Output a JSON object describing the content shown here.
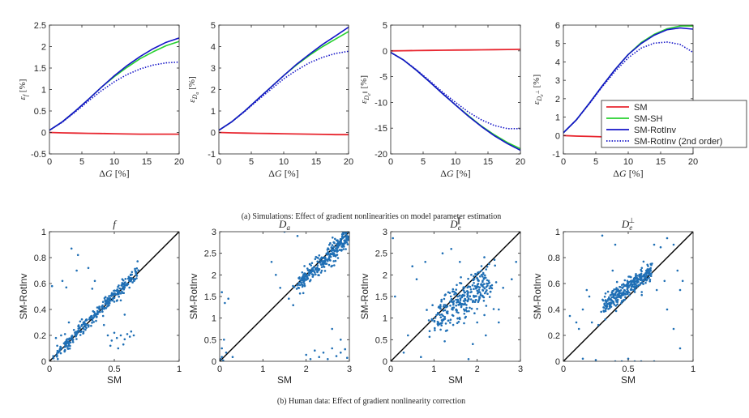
{
  "captions": {
    "a": "(a) Simulations: Effect of gradient nonlinearities on model parameter estimation",
    "b": "(b) Human data: Effect of gradient nonlinearity correction"
  },
  "colors": {
    "SM": "#e8262f",
    "SM-SH": "#27d12f",
    "SM-RotInv": "#1414c8",
    "SM-RotInv (2nd order)": "#1414c8",
    "scatter": "#1f6fb5",
    "axis": "#262626"
  },
  "legend": {
    "entries": [
      {
        "label": "SM",
        "style": "solid",
        "color": "#e8262f"
      },
      {
        "label": "SM-SH",
        "style": "solid",
        "color": "#27d12f"
      },
      {
        "label": "SM-RotInv",
        "style": "solid",
        "color": "#1414c8"
      },
      {
        "label": "SM-RotInv (2nd order)",
        "style": "dotted",
        "color": "#1414c8"
      }
    ],
    "placement": "lower-right of fourth top panel"
  },
  "chart_data": [
    {
      "type": "line",
      "panel": "a1",
      "xlabel": "ΔG [%]",
      "ylabel_sym": "ε",
      "ylabel_sub": "f",
      "ylabel_unit": "[%]",
      "xlim": [
        0,
        20
      ],
      "ylim": [
        -0.5,
        2.5
      ],
      "xticks": [
        0,
        5,
        10,
        15,
        20
      ],
      "yticks": [
        -0.5,
        0,
        0.5,
        1,
        1.5,
        2,
        2.5
      ],
      "ytick_labels": [
        "-0.5",
        "0",
        "0.5",
        "1",
        "1.5",
        "2",
        "2.5"
      ],
      "x": [
        0,
        2,
        4,
        6,
        8,
        10,
        12,
        14,
        16,
        18,
        20
      ],
      "series": [
        {
          "name": "SM",
          "values": [
            0,
            -0.01,
            -0.015,
            -0.02,
            -0.025,
            -0.03,
            -0.035,
            -0.04,
            -0.04,
            -0.04,
            -0.04
          ]
        },
        {
          "name": "SM-SH",
          "values": [
            0.05,
            0.25,
            0.5,
            0.77,
            1.05,
            1.3,
            1.52,
            1.72,
            1.88,
            2.02,
            2.12
          ]
        },
        {
          "name": "SM-RotInv",
          "values": [
            0.05,
            0.25,
            0.5,
            0.77,
            1.05,
            1.32,
            1.56,
            1.77,
            1.95,
            2.1,
            2.2
          ]
        },
        {
          "name": "SM-RotInv (2nd order)",
          "values": [
            0.05,
            0.24,
            0.48,
            0.73,
            0.97,
            1.18,
            1.35,
            1.48,
            1.57,
            1.62,
            1.64
          ]
        }
      ]
    },
    {
      "type": "line",
      "panel": "a2",
      "xlabel": "ΔG [%]",
      "ylabel_sym": "ε",
      "ylabel_sub": "Da",
      "ylabel_unit": "[%]",
      "xlim": [
        0,
        20
      ],
      "ylim": [
        -1,
        5
      ],
      "xticks": [
        0,
        5,
        10,
        15,
        20
      ],
      "yticks": [
        -1,
        0,
        1,
        2,
        3,
        4,
        5
      ],
      "ytick_labels": [
        "-1",
        "0",
        "1",
        "2",
        "3",
        "4",
        "5"
      ],
      "x": [
        0,
        2,
        4,
        6,
        8,
        10,
        12,
        14,
        16,
        18,
        20
      ],
      "series": [
        {
          "name": "SM",
          "values": [
            0,
            -0.02,
            -0.03,
            -0.04,
            -0.05,
            -0.06,
            -0.07,
            -0.08,
            -0.09,
            -0.1,
            -0.1
          ]
        },
        {
          "name": "SM-SH",
          "values": [
            0.1,
            0.5,
            1.0,
            1.55,
            2.1,
            2.65,
            3.15,
            3.6,
            4.0,
            4.35,
            4.7
          ]
        },
        {
          "name": "SM-RotInv",
          "values": [
            0.1,
            0.5,
            1.0,
            1.55,
            2.1,
            2.65,
            3.18,
            3.65,
            4.1,
            4.5,
            4.9
          ]
        },
        {
          "name": "SM-RotInv (2nd order)",
          "values": [
            0.1,
            0.5,
            0.98,
            1.5,
            2.0,
            2.5,
            2.9,
            3.25,
            3.5,
            3.68,
            3.78
          ]
        }
      ]
    },
    {
      "type": "line",
      "panel": "a3",
      "xlabel": "ΔG [%]",
      "ylabel_sym": "ε",
      "ylabel_sub": "De",
      "ylabel_sup": "∥",
      "ylabel_unit": "[%]",
      "xlim": [
        0,
        20
      ],
      "ylim": [
        -20,
        5
      ],
      "xticks": [
        0,
        5,
        10,
        15,
        20
      ],
      "yticks": [
        -20,
        -15,
        -10,
        -5,
        0,
        5
      ],
      "ytick_labels": [
        "-20",
        "-15",
        "-10",
        "-5",
        "0",
        "5"
      ],
      "x": [
        0,
        2,
        4,
        6,
        8,
        10,
        12,
        14,
        16,
        18,
        20
      ],
      "series": [
        {
          "name": "SM",
          "values": [
            0,
            0.03,
            0.06,
            0.09,
            0.12,
            0.15,
            0.18,
            0.21,
            0.24,
            0.27,
            0.3
          ]
        },
        {
          "name": "SM-SH",
          "values": [
            -0.3,
            -1.8,
            -3.8,
            -6.0,
            -8.3,
            -10.5,
            -12.6,
            -14.6,
            -16.3,
            -17.8,
            -19.0
          ]
        },
        {
          "name": "SM-RotInv",
          "values": [
            -0.3,
            -1.8,
            -3.8,
            -6.0,
            -8.3,
            -10.5,
            -12.7,
            -14.7,
            -16.5,
            -18.0,
            -19.3
          ]
        },
        {
          "name": "SM-RotInv (2nd order)",
          "values": [
            -0.3,
            -1.8,
            -3.7,
            -5.8,
            -8.0,
            -10.0,
            -11.9,
            -13.4,
            -14.5,
            -15.1,
            -15.1
          ]
        }
      ]
    },
    {
      "type": "line",
      "panel": "a4",
      "xlabel": "ΔG [%]",
      "ylabel_sym": "ε",
      "ylabel_sub": "De",
      "ylabel_sup": "⊥",
      "ylabel_unit": "[%]",
      "xlim": [
        0,
        20
      ],
      "ylim": [
        -1,
        6
      ],
      "xticks": [
        0,
        5,
        10,
        15,
        20
      ],
      "yticks": [
        -1,
        0,
        1,
        2,
        3,
        4,
        5,
        6
      ],
      "ytick_labels": [
        "-1",
        "0",
        "1",
        "2",
        "3",
        "4",
        "5",
        "6"
      ],
      "x": [
        0,
        2,
        4,
        6,
        8,
        10,
        12,
        14,
        16,
        18,
        20
      ],
      "series": [
        {
          "name": "SM",
          "values": [
            0,
            -0.03,
            -0.05,
            -0.07,
            -0.09,
            -0.1,
            -0.12,
            -0.13,
            -0.14,
            -0.15,
            -0.15
          ]
        },
        {
          "name": "SM-SH",
          "values": [
            0.15,
            0.85,
            1.75,
            2.7,
            3.6,
            4.4,
            5.05,
            5.5,
            5.8,
            5.95,
            5.95
          ]
        },
        {
          "name": "SM-RotInv",
          "values": [
            0.15,
            0.85,
            1.75,
            2.7,
            3.6,
            4.4,
            5.0,
            5.45,
            5.75,
            5.85,
            5.78
          ]
        },
        {
          "name": "SM-RotInv (2nd order)",
          "values": [
            0.15,
            0.85,
            1.72,
            2.65,
            3.5,
            4.22,
            4.75,
            5.02,
            5.08,
            4.95,
            4.52
          ]
        }
      ]
    },
    {
      "type": "scatter",
      "panel": "b1",
      "title": "f",
      "xlabel": "SM",
      "ylabel": "SM-RotInv",
      "xlim": [
        0,
        1
      ],
      "ylim": [
        0,
        1
      ],
      "xticks": [
        0,
        0.5,
        1
      ],
      "xtick_labels": [
        "0",
        "0.5",
        "1"
      ],
      "yticks": [
        0,
        0.2,
        0.4,
        0.6,
        0.8,
        1
      ],
      "ytick_labels": [
        "0",
        "0.2",
        "0.4",
        "0.6",
        "0.8",
        "1"
      ],
      "cluster": {
        "x_range": [
          0.02,
          0.68
        ],
        "slope": 1.02,
        "intercept": 0.0,
        "spread": 0.025,
        "n": 300
      },
      "outliers": [
        [
          0.1,
          0.62
        ],
        [
          0.13,
          0.57
        ],
        [
          0.17,
          0.87
        ],
        [
          0.22,
          0.82
        ],
        [
          0.21,
          0.7
        ],
        [
          0.3,
          0.72
        ],
        [
          0.33,
          0.56
        ],
        [
          0.35,
          0.62
        ],
        [
          0.15,
          0.3
        ],
        [
          0.05,
          0.18
        ],
        [
          0.09,
          0.2
        ],
        [
          0.12,
          0.21
        ],
        [
          0.06,
          0.12
        ],
        [
          0.45,
          0.2
        ],
        [
          0.48,
          0.16
        ],
        [
          0.5,
          0.22
        ],
        [
          0.52,
          0.18
        ],
        [
          0.55,
          0.2
        ],
        [
          0.58,
          0.17
        ],
        [
          0.6,
          0.21
        ],
        [
          0.62,
          0.19
        ],
        [
          0.65,
          0.2
        ],
        [
          0.47,
          0.12
        ],
        [
          0.53,
          0.1
        ],
        [
          0.57,
          0.13
        ],
        [
          0.02,
          0.58
        ],
        [
          0.55,
          0.47
        ],
        [
          0.58,
          0.36
        ],
        [
          0.42,
          0.28
        ],
        [
          0.63,
          0.23
        ]
      ]
    },
    {
      "type": "scatter",
      "panel": "b2",
      "title": "Da",
      "xlabel": "SM",
      "ylabel": "SM-RotInv",
      "xlim": [
        0,
        3
      ],
      "ylim": [
        0,
        3
      ],
      "xticks": [
        0,
        1,
        2,
        3
      ],
      "xtick_labels": [
        "0",
        "1",
        "2",
        "3"
      ],
      "yticks": [
        0,
        0.5,
        1,
        1.5,
        2,
        2.5,
        3
      ],
      "ytick_labels": [
        "0",
        "0.5",
        "1",
        "1.5",
        "2",
        "2.5",
        "3"
      ],
      "cluster": {
        "x_range": [
          1.75,
          3.0
        ],
        "slope": 0.98,
        "intercept": -0.05,
        "spread": 0.12,
        "n": 300
      },
      "outliers": [
        [
          0.02,
          0.05
        ],
        [
          0.05,
          0.1
        ],
        [
          0.08,
          0.02
        ],
        [
          0.1,
          0.5
        ],
        [
          0.12,
          1.35
        ],
        [
          0.2,
          1.45
        ],
        [
          0.15,
          0.2
        ],
        [
          0.3,
          0.1
        ],
        [
          0.05,
          0.3
        ],
        [
          1.3,
          2.0
        ],
        [
          1.4,
          1.7
        ],
        [
          1.6,
          1.45
        ],
        [
          1.7,
          1.3
        ],
        [
          1.2,
          2.3
        ],
        [
          1.5,
          3.0
        ],
        [
          1.8,
          2.9
        ],
        [
          2.0,
          0.15
        ],
        [
          2.2,
          0.25
        ],
        [
          2.3,
          0.1
        ],
        [
          2.4,
          0.2
        ],
        [
          2.5,
          0.05
        ],
        [
          2.6,
          0.3
        ],
        [
          2.7,
          0.12
        ],
        [
          2.8,
          0.2
        ],
        [
          2.9,
          0.28
        ],
        [
          2.95,
          0.08
        ],
        [
          2.1,
          0.05
        ],
        [
          2.6,
          0.75
        ],
        [
          2.8,
          0.5
        ],
        [
          0.05,
          1.6
        ]
      ]
    },
    {
      "type": "scatter",
      "panel": "b3",
      "title": "De∥",
      "xlabel": "SM",
      "ylabel": "SM-RotInv",
      "xlim": [
        0,
        3
      ],
      "ylim": [
        0,
        3
      ],
      "xticks": [
        0,
        1,
        2,
        3
      ],
      "xtick_labels": [
        "0",
        "1",
        "2",
        "3"
      ],
      "yticks": [
        0,
        0.5,
        1,
        1.5,
        2,
        2.5,
        3
      ],
      "ytick_labels": [
        "0",
        "0.5",
        "1",
        "1.5",
        "2",
        "2.5",
        "3"
      ],
      "cluster": {
        "x_range": [
          1.0,
          2.3
        ],
        "slope": 0.72,
        "intercept": 0.2,
        "spread": 0.22,
        "n": 300
      },
      "outliers": [
        [
          0.1,
          1.5
        ],
        [
          0.05,
          2.85
        ],
        [
          0.5,
          2.2
        ],
        [
          0.6,
          1.9
        ],
        [
          0.8,
          2.3
        ],
        [
          0.7,
          0.1
        ],
        [
          0.3,
          0.2
        ],
        [
          1.2,
          2.5
        ],
        [
          1.4,
          2.6
        ],
        [
          1.6,
          2.3
        ],
        [
          2.5,
          0.9
        ],
        [
          2.5,
          1.2
        ],
        [
          2.6,
          1.7
        ],
        [
          2.8,
          1.9
        ],
        [
          2.9,
          2.3
        ],
        [
          2.4,
          2.35
        ],
        [
          1.8,
          0.05
        ],
        [
          1.9,
          0.4
        ],
        [
          2.2,
          0.6
        ],
        [
          2.0,
          0.9
        ],
        [
          0.9,
          0.7
        ],
        [
          1.1,
          0.9
        ],
        [
          2.1,
          2.1
        ],
        [
          0.4,
          0.6
        ]
      ]
    },
    {
      "type": "scatter",
      "panel": "b4",
      "title": "De⊥",
      "xlabel": "SM",
      "ylabel": "SM-RotInv",
      "xlim": [
        0,
        1
      ],
      "ylim": [
        0,
        1
      ],
      "xticks": [
        0,
        0.5,
        1
      ],
      "xtick_labels": [
        "0",
        "0.5",
        "1"
      ],
      "yticks": [
        0,
        0.2,
        0.4,
        0.6,
        0.8,
        1
      ],
      "ytick_labels": [
        "0",
        "0.2",
        "0.4",
        "0.6",
        "0.8",
        "1"
      ],
      "cluster": {
        "x_range": [
          0.3,
          0.68
        ],
        "slope": 0.78,
        "intercept": 0.18,
        "spread": 0.04,
        "n": 300
      },
      "outliers": [
        [
          0.05,
          0.35
        ],
        [
          0.1,
          0.3
        ],
        [
          0.12,
          0.25
        ],
        [
          0.15,
          0.4
        ],
        [
          0.2,
          0.5
        ],
        [
          0.18,
          0.55
        ],
        [
          0.22,
          0.3
        ],
        [
          0.27,
          0.28
        ],
        [
          0.3,
          0.97
        ],
        [
          0.4,
          0.9
        ],
        [
          0.38,
          0.7
        ],
        [
          0.7,
          0.9
        ],
        [
          0.75,
          0.88
        ],
        [
          0.8,
          0.95
        ],
        [
          0.85,
          0.9
        ],
        [
          0.88,
          0.7
        ],
        [
          0.9,
          0.55
        ],
        [
          0.92,
          0.62
        ],
        [
          0.72,
          0.55
        ],
        [
          0.78,
          0.62
        ],
        [
          0.8,
          0.4
        ],
        [
          0.85,
          0.25
        ],
        [
          0.9,
          0.1
        ],
        [
          0.4,
          0.0
        ],
        [
          0.45,
          0.0
        ],
        [
          0.55,
          0.0
        ],
        [
          0.6,
          0.0
        ],
        [
          0.7,
          0.0
        ],
        [
          0.5,
          0.02
        ],
        [
          0.25,
          0.01
        ],
        [
          0.15,
          0.02
        ]
      ]
    }
  ]
}
